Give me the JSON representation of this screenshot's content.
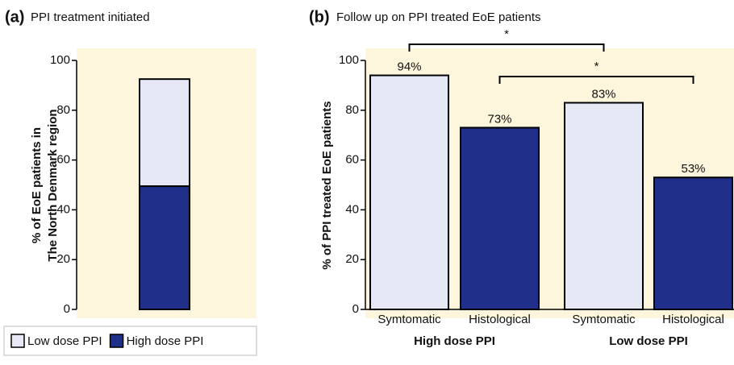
{
  "chart_data": [
    {
      "type": "bar",
      "stacked": true,
      "panel": "(a)",
      "title": "PPI treatment initiated",
      "ylabel": [
        "% of EoE patients in",
        "The North Denmark region"
      ],
      "categories": [
        null
      ],
      "series": [
        {
          "name": "High dose PPI",
          "color": "#1f2f8a",
          "values": [
            49.5
          ]
        },
        {
          "name": "Low dose PPI",
          "color": "#e6e8f6",
          "values": [
            43
          ]
        }
      ],
      "legend_order": [
        "Low dose PPI",
        "High dose PPI"
      ],
      "ylim": [
        0,
        100
      ],
      "yticks": [
        0,
        20,
        40,
        60,
        80,
        100
      ],
      "background": "#fdf5dc"
    },
    {
      "type": "bar",
      "panel": "(b)",
      "title": "Follow up on PPI treated EoE patients",
      "ylabel": "% of PPI treated EoE patients",
      "categories": [
        "Symtomatic",
        "Histological",
        "Symtomatic",
        "Histological"
      ],
      "groups": [
        "High dose PPI",
        "Low dose PPI"
      ],
      "values": [
        94,
        73,
        83,
        53
      ],
      "value_labels": [
        "94%",
        "73%",
        "83%",
        "53%"
      ],
      "colors": [
        "#e6e8f6",
        "#1f2f8a",
        "#e6e8f6",
        "#1f2f8a"
      ],
      "annotations": [
        "*",
        "*"
      ],
      "ylim": [
        0,
        100
      ],
      "yticks": [
        0,
        20,
        40,
        60,
        80,
        100
      ],
      "background": "#fdf5dc"
    }
  ]
}
